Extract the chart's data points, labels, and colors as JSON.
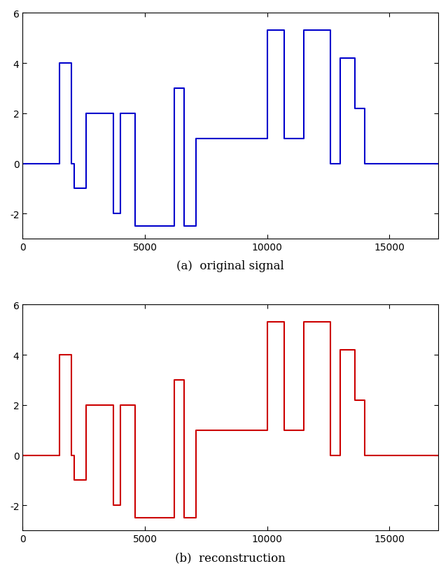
{
  "title_a": "(a)  original signal",
  "title_b": "(b)  reconstruction",
  "color_a": "#0000cc",
  "color_b": "#cc0000",
  "xlim": [
    0,
    17000
  ],
  "ylim_a": [
    -3,
    6
  ],
  "ylim_b": [
    -3,
    6
  ],
  "yticks": [
    -2,
    0,
    2,
    4,
    6
  ],
  "xticks": [
    0,
    5000,
    10000,
    15000
  ],
  "linewidth": 1.5,
  "signal_a": {
    "x": [
      0,
      1500,
      1500,
      2000,
      2000,
      2500,
      2500,
      3500,
      3500,
      4000,
      4000,
      4500,
      4500,
      6000,
      6000,
      6500,
      6500,
      7000,
      7000,
      9500,
      9500,
      10000,
      10000,
      10500,
      10500,
      11500,
      11500,
      12500,
      12500,
      13000,
      13000,
      13500,
      13500,
      14000,
      14000,
      17000
    ],
    "y": [
      0,
      0,
      4,
      4,
      0,
      0,
      2,
      2,
      -1,
      -1,
      2,
      2,
      -2,
      -2,
      3,
      3,
      -2.5,
      -2.5,
      1,
      1,
      1,
      1,
      5.3,
      5.3,
      1,
      1,
      5.3,
      5.3,
      0,
      0,
      4.2,
      4.2,
      2.2,
      2.2,
      0,
      0
    ]
  },
  "signal_b": {
    "x": [
      0,
      1500,
      1500,
      2000,
      2000,
      2500,
      2500,
      3500,
      3500,
      4000,
      4000,
      4500,
      4500,
      6000,
      6000,
      6500,
      6500,
      7000,
      7000,
      9500,
      9500,
      10000,
      10000,
      10500,
      10500,
      11500,
      11500,
      12500,
      12500,
      13000,
      13000,
      13500,
      13500,
      14000,
      14000,
      17000
    ],
    "y": [
      0,
      0,
      4,
      4,
      0,
      0,
      2,
      2,
      -1,
      -1,
      2,
      2,
      -2,
      -2,
      3,
      3,
      -2.5,
      -2.5,
      1,
      1,
      1,
      1,
      5.3,
      5.3,
      1,
      1,
      5.3,
      5.3,
      0,
      0,
      4.2,
      4.2,
      2.2,
      2.2,
      0,
      0
    ]
  }
}
